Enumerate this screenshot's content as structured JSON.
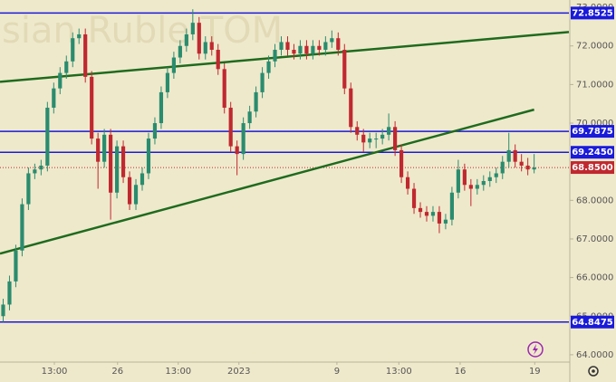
{
  "chart_data": {
    "type": "candlestick",
    "watermark": "sian Ruble TOM",
    "up_color": "#2a8c6e",
    "down_color": "#c0282f",
    "xlim": [
      0,
      90
    ],
    "xticks": [
      {
        "value": 8.6,
        "label": "13:00"
      },
      {
        "value": 18.6,
        "label": "26"
      },
      {
        "value": 28.2,
        "label": "13:00"
      },
      {
        "value": 37.8,
        "label": "2023"
      },
      {
        "value": 53.3,
        "label": "9"
      },
      {
        "value": 63.1,
        "label": "13:00"
      },
      {
        "value": 72.8,
        "label": "16"
      },
      {
        "value": 84.6,
        "label": "19"
      }
    ],
    "ylim": [
      63.81,
      73.19
    ],
    "yticks": [
      {
        "value": 73,
        "label": "73.0000"
      },
      {
        "value": 72,
        "label": "72.0000"
      },
      {
        "value": 71,
        "label": "71.0000"
      },
      {
        "value": 70,
        "label": "70.0000"
      },
      {
        "value": 68,
        "label": "68.0000"
      },
      {
        "value": 67,
        "label": "67.0000"
      },
      {
        "value": 66,
        "label": "66.0000"
      },
      {
        "value": 65,
        "label": "65.0000"
      },
      {
        "value": 64,
        "label": "64.0000"
      }
    ],
    "levels": [
      {
        "value": 72.8525,
        "label": "72.8525"
      },
      {
        "value": 69.7875,
        "label": "69.7875"
      },
      {
        "value": 69.245,
        "label": "69.2450"
      },
      {
        "value": 64.8475,
        "label": "64.8475"
      }
    ],
    "level_color": "#1a1adb",
    "last_price": {
      "value": 68.85,
      "label": "68.8500"
    },
    "trend_color": "#1e6b1e",
    "trendlines": [
      {
        "x": [
          0,
          90
        ],
        "y": [
          71.07,
          72.36
        ]
      },
      {
        "x": [
          0,
          84.5
        ],
        "y": [
          66.62,
          70.35
        ]
      }
    ],
    "candles": [
      [
        65.0,
        65.45,
        64.85,
        65.3
      ],
      [
        65.3,
        66.05,
        65.15,
        65.9
      ],
      [
        65.9,
        66.85,
        65.75,
        66.7
      ],
      [
        66.7,
        68.05,
        66.55,
        67.9
      ],
      [
        67.9,
        68.85,
        67.75,
        68.7
      ],
      [
        68.7,
        68.95,
        68.55,
        68.8
      ],
      [
        68.8,
        69.05,
        68.65,
        68.9
      ],
      [
        68.9,
        70.55,
        68.75,
        70.4
      ],
      [
        70.4,
        71.05,
        70.25,
        70.9
      ],
      [
        70.9,
        71.45,
        70.75,
        71.3
      ],
      [
        71.3,
        71.75,
        71.15,
        71.6
      ],
      [
        71.6,
        72.35,
        71.45,
        72.2
      ],
      [
        72.2,
        72.45,
        72.05,
        72.3
      ],
      [
        72.3,
        72.45,
        71.05,
        71.2
      ],
      [
        71.2,
        71.35,
        69.45,
        69.6
      ],
      [
        69.6,
        69.75,
        68.3,
        69.0
      ],
      [
        69.0,
        69.85,
        68.85,
        69.7
      ],
      [
        69.7,
        69.85,
        67.5,
        68.2
      ],
      [
        68.2,
        69.55,
        68.05,
        69.4
      ],
      [
        69.4,
        69.55,
        68.45,
        68.6
      ],
      [
        68.6,
        68.75,
        67.75,
        67.9
      ],
      [
        67.9,
        68.55,
        67.75,
        68.4
      ],
      [
        68.4,
        68.85,
        68.25,
        68.7
      ],
      [
        68.7,
        69.75,
        68.55,
        69.6
      ],
      [
        69.6,
        70.15,
        69.45,
        70.0
      ],
      [
        70.0,
        70.95,
        69.85,
        70.8
      ],
      [
        70.8,
        71.45,
        70.65,
        71.3
      ],
      [
        71.3,
        71.85,
        71.15,
        71.7
      ],
      [
        71.7,
        72.15,
        71.55,
        72.0
      ],
      [
        72.0,
        72.45,
        71.85,
        72.3
      ],
      [
        72.3,
        72.95,
        72.15,
        72.6
      ],
      [
        72.6,
        72.75,
        71.65,
        71.8
      ],
      [
        71.8,
        72.25,
        71.65,
        72.1
      ],
      [
        72.1,
        72.25,
        71.75,
        71.9
      ],
      [
        71.9,
        72.05,
        71.25,
        71.4
      ],
      [
        71.4,
        71.55,
        70.25,
        70.4
      ],
      [
        70.4,
        70.55,
        69.25,
        69.4
      ],
      [
        69.4,
        69.55,
        68.65,
        69.2
      ],
      [
        69.2,
        70.15,
        69.05,
        70.0
      ],
      [
        70.0,
        70.45,
        69.85,
        70.3
      ],
      [
        70.3,
        70.95,
        70.15,
        70.8
      ],
      [
        70.8,
        71.45,
        70.65,
        71.3
      ],
      [
        71.3,
        71.75,
        71.15,
        71.6
      ],
      [
        71.6,
        72.05,
        71.45,
        71.9
      ],
      [
        71.9,
        72.25,
        71.75,
        72.1
      ],
      [
        72.1,
        72.25,
        71.75,
        71.9
      ],
      [
        71.9,
        72.05,
        71.65,
        71.8
      ],
      [
        71.8,
        72.15,
        71.65,
        72.0
      ],
      [
        72.0,
        72.15,
        71.65,
        71.8
      ],
      [
        71.8,
        72.15,
        71.65,
        72.0
      ],
      [
        72.0,
        72.15,
        71.75,
        71.9
      ],
      [
        71.9,
        72.25,
        71.75,
        72.1
      ],
      [
        72.1,
        72.4,
        71.95,
        72.2
      ],
      [
        72.2,
        72.35,
        71.75,
        71.9
      ],
      [
        71.9,
        72.05,
        70.75,
        70.9
      ],
      [
        70.9,
        71.05,
        69.75,
        69.9
      ],
      [
        69.9,
        70.05,
        69.55,
        69.7
      ],
      [
        69.7,
        69.85,
        69.25,
        69.5
      ],
      [
        69.5,
        69.75,
        69.35,
        69.6
      ],
      [
        69.6,
        69.75,
        69.35,
        69.6
      ],
      [
        69.6,
        69.85,
        69.45,
        69.7
      ],
      [
        69.7,
        70.25,
        69.55,
        69.9
      ],
      [
        69.9,
        70.05,
        69.15,
        69.3
      ],
      [
        69.3,
        69.45,
        68.45,
        68.6
      ],
      [
        68.6,
        68.75,
        68.15,
        68.3
      ],
      [
        68.3,
        68.45,
        67.65,
        67.8
      ],
      [
        67.8,
        67.95,
        67.55,
        67.7
      ],
      [
        67.7,
        67.85,
        67.45,
        67.6
      ],
      [
        67.6,
        67.85,
        67.45,
        67.7
      ],
      [
        67.7,
        67.85,
        67.15,
        67.4
      ],
      [
        67.4,
        67.65,
        67.25,
        67.5
      ],
      [
        67.5,
        68.35,
        67.35,
        68.2
      ],
      [
        68.2,
        69.05,
        68.05,
        68.8
      ],
      [
        68.8,
        68.95,
        68.25,
        68.4
      ],
      [
        68.4,
        68.55,
        67.85,
        68.3
      ],
      [
        68.3,
        68.55,
        68.15,
        68.4
      ],
      [
        68.4,
        68.65,
        68.25,
        68.5
      ],
      [
        68.5,
        68.75,
        68.35,
        68.6
      ],
      [
        68.6,
        68.85,
        68.45,
        68.7
      ],
      [
        68.7,
        69.15,
        68.55,
        69.0
      ],
      [
        69.0,
        69.75,
        68.85,
        69.3
      ],
      [
        69.3,
        69.45,
        68.85,
        69.0
      ],
      [
        69.0,
        69.2,
        68.75,
        68.9
      ],
      [
        68.9,
        69.1,
        68.65,
        68.8
      ],
      [
        68.8,
        69.2,
        68.7,
        68.85
      ]
    ]
  }
}
